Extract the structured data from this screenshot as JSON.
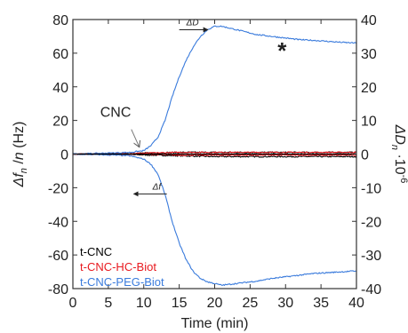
{
  "chart_data": {
    "type": "line",
    "xlabel": "Time (min)",
    "xlim": [
      0,
      40
    ],
    "x_ticks": [
      0,
      5,
      10,
      15,
      20,
      25,
      30,
      35,
      40
    ],
    "ylabel_left": {
      "main": "Δf",
      "sub1": "n",
      "mid": " /",
      "italic": "n",
      "end": " (Hz)"
    },
    "ylim_left": [
      -80,
      80
    ],
    "y_ticks_left": [
      -80,
      -60,
      -40,
      -20,
      0,
      20,
      40,
      60,
      80
    ],
    "ylabel_right": {
      "main": "ΔD",
      "sub": "n",
      "end": " ·10",
      "sup": "-6"
    },
    "ylim_right": [
      -40,
      40
    ],
    "y_ticks_right": [
      -40,
      -30,
      -20,
      -10,
      0,
      10,
      20,
      30,
      40
    ],
    "grid": false,
    "legend_position": "bottom-left",
    "colors": {
      "t-CNC": "#000000",
      "t-CNC-HC-Biot": "#e8181e",
      "t-CNC-PEG-Biot": "#3a7bdc"
    },
    "series": [
      {
        "name": "t-CNC",
        "axis": "left",
        "x": [
          0,
          5,
          10,
          15,
          20,
          25,
          30,
          35,
          40
        ],
        "y": [
          0,
          0,
          -0.5,
          -1,
          -1.5,
          -1.5,
          -1.5,
          -1.5,
          -1.5
        ]
      },
      {
        "name": "t-CNC",
        "axis": "right",
        "x": [
          0,
          5,
          10,
          15,
          20,
          25,
          30,
          35,
          40
        ],
        "y": [
          0,
          0,
          0.3,
          0.5,
          0.5,
          0.5,
          0.5,
          0.5,
          0.5
        ]
      },
      {
        "name": "t-CNC-HC-Biot",
        "axis": "left",
        "x": [
          0,
          5,
          10,
          15,
          20,
          25,
          30,
          35,
          40
        ],
        "y": [
          0,
          0,
          0.5,
          1,
          1,
          1,
          1,
          1,
          1
        ]
      },
      {
        "name": "t-CNC-HC-Biot",
        "axis": "right",
        "x": [
          0,
          5,
          10,
          15,
          20,
          25,
          30,
          35,
          40
        ],
        "y": [
          0,
          0,
          0,
          -0.3,
          -0.3,
          -0.3,
          -0.3,
          -0.3,
          -0.3
        ]
      },
      {
        "name": "t-CNC-PEG-Biot",
        "axis": "right",
        "x": [
          0,
          5,
          8,
          10,
          11,
          12,
          13,
          14,
          15,
          16,
          17,
          18,
          19,
          20,
          21,
          22,
          24,
          26,
          28,
          30,
          32,
          34,
          36,
          38,
          40
        ],
        "y": [
          0,
          0.3,
          0.5,
          1,
          2.5,
          5,
          10,
          17,
          23,
          28,
          32,
          35,
          37,
          38,
          38,
          37.5,
          36.5,
          35.5,
          35,
          34.5,
          34,
          33.8,
          33.5,
          33.2,
          33
        ]
      },
      {
        "name": "t-CNC-PEG-Biot",
        "axis": "left",
        "x": [
          0,
          5,
          8,
          10,
          11,
          12,
          13,
          14,
          15,
          16,
          17,
          18,
          19,
          20,
          21,
          22,
          24,
          26,
          28,
          30,
          32,
          34,
          36,
          38,
          40
        ],
        "y": [
          0,
          -0.5,
          -1,
          -3,
          -6,
          -12,
          -24,
          -40,
          -53,
          -63,
          -70,
          -74,
          -76,
          -77,
          -78,
          -77.5,
          -76.5,
          -75.5,
          -74,
          -73,
          -72,
          -71,
          -70.5,
          -70,
          -69.5
        ]
      }
    ],
    "annotations": [
      {
        "text": "CNC",
        "x": 9.5,
        "y": 2,
        "axis": "left",
        "kind": "injection-arrow"
      },
      {
        "text": "ΔD",
        "x": 15,
        "y": 75,
        "axis": "left",
        "kind": "axis-pointer",
        "direction": "right"
      },
      {
        "text": "Δf",
        "x": 13,
        "y": -20,
        "axis": "left",
        "kind": "axis-pointer",
        "direction": "left"
      },
      {
        "text": "*",
        "x": 29.5,
        "y": 62,
        "axis": "left",
        "kind": "marker"
      }
    ]
  }
}
